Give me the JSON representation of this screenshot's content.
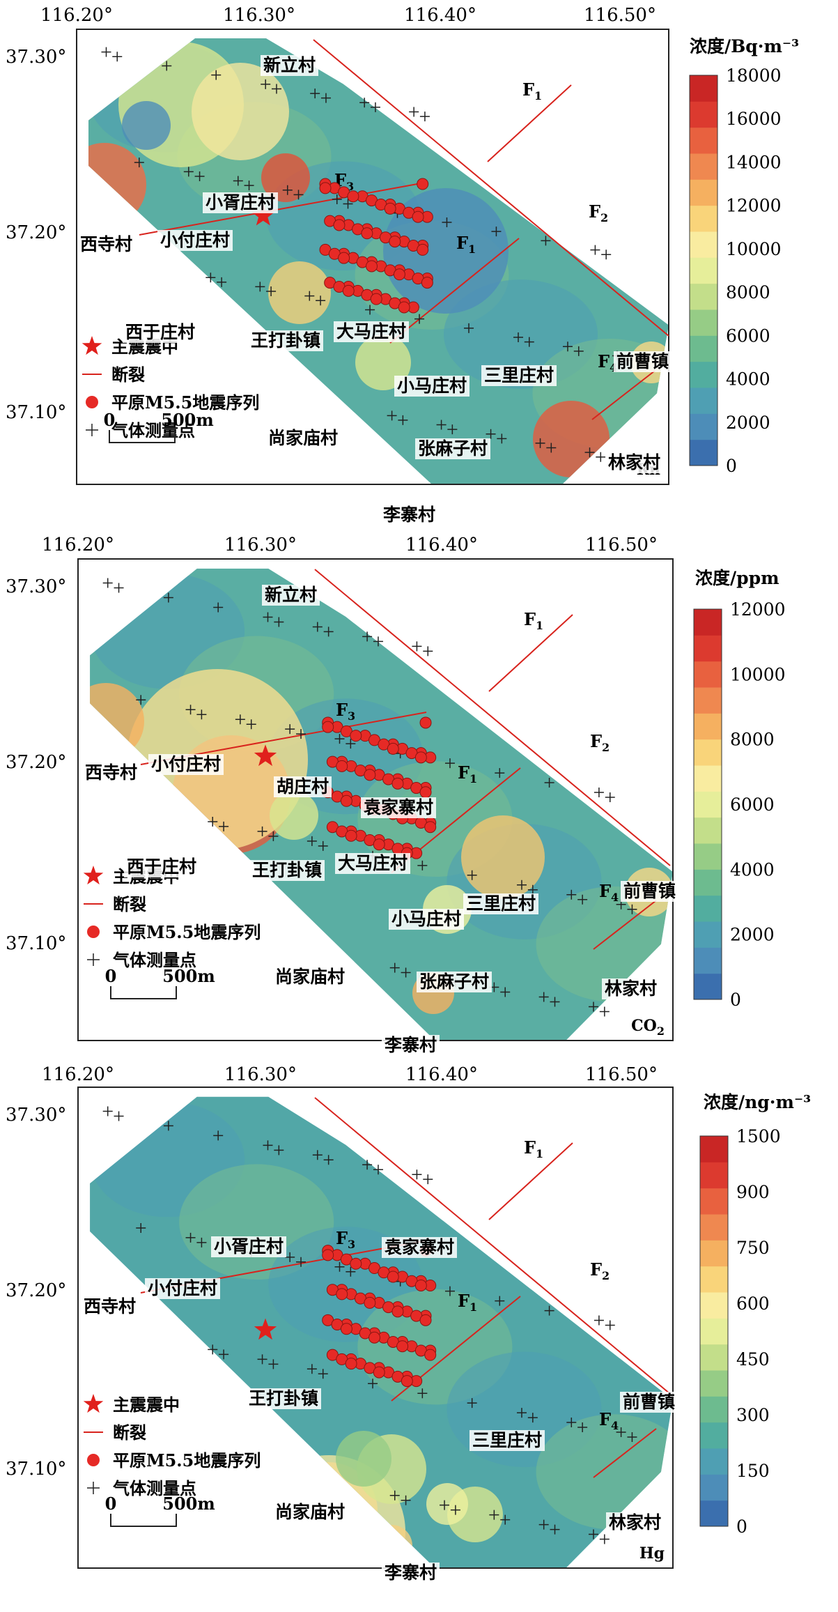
{
  "lon_ticks": [
    "116.20°",
    "116.30°",
    "116.40°",
    "116.50°"
  ],
  "lat_ticks": [
    "37.30°",
    "37.20°",
    "37.10°"
  ],
  "legend": {
    "epicenter": "主震震中",
    "fault": "断裂",
    "sequence": "平原M5.5地震序列",
    "points": "气体测量点"
  },
  "scalebar": {
    "zero": "0",
    "dist": "500m"
  },
  "faults": {
    "f1": "F1",
    "f2": "F2",
    "f3": "F3",
    "f4": "F4"
  },
  "panels": [
    {
      "gas": "Rn",
      "unit": "浓度/Bq·m⁻³",
      "scale": [
        "18000",
        "16000",
        "14000",
        "12000",
        "10000",
        "8000",
        "6000",
        "4000",
        "2000",
        "0"
      ],
      "villages": [
        "新立村",
        "小胥庄村",
        "西寺村",
        "小付庄村",
        "西于庄村",
        "王打卦镇",
        "大马庄村",
        "三里庄村",
        "前曹镇",
        "小马庄村",
        "尚家庙村",
        "张麻子村",
        "林家村",
        "李寨村"
      ]
    },
    {
      "gas": "CO2",
      "unit": "浓度/ppm",
      "scale": [
        "12000",
        "10000",
        "8000",
        "6000",
        "4000",
        "2000",
        "0"
      ],
      "villages": [
        "新立村",
        "胡庄村",
        "袁家寨村",
        "西寺村",
        "小付庄村",
        "西于庄村",
        "王打卦镇",
        "大马庄村",
        "三里庄村",
        "前曹镇",
        "小马庄村",
        "尚家庙村",
        "张麻子村",
        "林家村",
        "李寨村"
      ]
    },
    {
      "gas": "Hg",
      "unit": "浓度/ng·m⁻³",
      "scale": [
        "1500",
        "900",
        "750",
        "600",
        "450",
        "300",
        "150",
        "0"
      ],
      "villages": [
        "袁家寨村",
        "小胥庄村",
        "小付庄村",
        "西寺村",
        "王打卦镇",
        "三里庄村",
        "前曹镇",
        "尚家庙村",
        "林家村",
        "李寨村"
      ]
    }
  ]
}
